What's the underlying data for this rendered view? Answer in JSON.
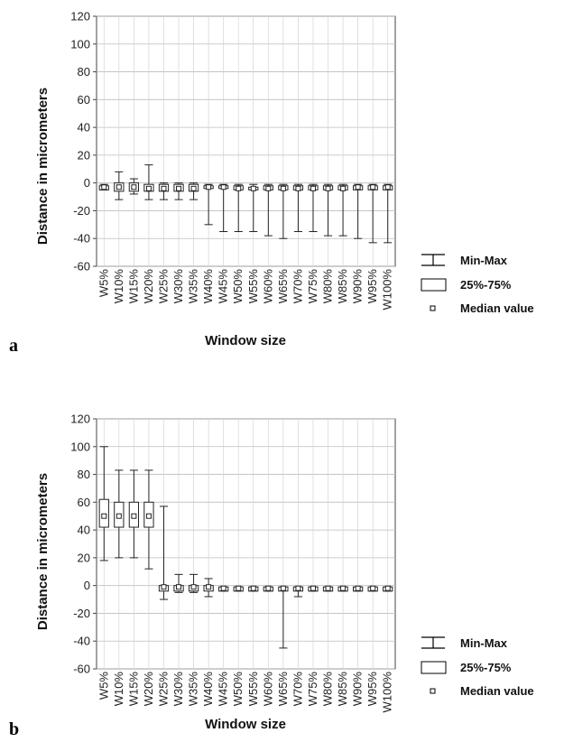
{
  "chart_data": [
    {
      "type": "box",
      "panel_label": "a",
      "xlabel": "Window size",
      "ylabel": "Distance in micrometers",
      "ylim": [
        -60,
        120
      ],
      "yticks": [
        120,
        100,
        80,
        60,
        40,
        20,
        0,
        -20,
        -40,
        -60
      ],
      "grid": true,
      "legend_position": "right",
      "legend": [
        "Min-Max",
        "25%-75%",
        "Median value"
      ],
      "categories": [
        "W5%",
        "W10%",
        "W15%",
        "W20%",
        "W25%",
        "W30%",
        "W35%",
        "W40%",
        "W45%",
        "W50%",
        "W55%",
        "W60%",
        "W65%",
        "W70%",
        "W75%",
        "W80%",
        "W85%",
        "W90%",
        "W95%",
        "W100%"
      ],
      "min": [
        -5,
        -12,
        -8,
        -12,
        -12,
        -12,
        -12,
        -30,
        -35,
        -35,
        -35,
        -38,
        -40,
        -35,
        -35,
        -38,
        -38,
        -40,
        -43,
        -43
      ],
      "q1": [
        -5,
        -6,
        -6,
        -6,
        -6,
        -6,
        -6,
        -4,
        -4,
        -5,
        -5,
        -5,
        -5,
        -5,
        -5,
        -5,
        -5,
        -5,
        -5,
        -5
      ],
      "median": [
        -3,
        -3,
        -3,
        -4,
        -4,
        -4,
        -4,
        -3,
        -3,
        -4,
        -4,
        -4,
        -4,
        -4,
        -4,
        -4,
        -4,
        -3,
        -3,
        -3
      ],
      "q3": [
        -2,
        0,
        0,
        -1,
        -1,
        -1,
        -1,
        -2,
        -2,
        -2,
        -3,
        -2,
        -2,
        -2,
        -2,
        -2,
        -2,
        -2,
        -2,
        -2
      ],
      "max": [
        -1,
        8,
        3,
        13,
        0,
        0,
        0,
        -1,
        -1,
        -1,
        -1,
        -1,
        -1,
        -1,
        -1,
        -1,
        -1,
        -1,
        -1,
        -1
      ]
    },
    {
      "type": "box",
      "panel_label": "b",
      "xlabel": "Window size",
      "ylabel": "Distance in micrometers",
      "ylim": [
        -60,
        120
      ],
      "yticks": [
        120,
        100,
        80,
        60,
        40,
        20,
        0,
        -20,
        -40,
        -60
      ],
      "grid": true,
      "legend_position": "right",
      "legend": [
        "Min-Max",
        "25%-75%",
        "Median value"
      ],
      "categories": [
        "W5%",
        "W10%",
        "W15%",
        "W20%",
        "W25%",
        "W30%",
        "W35%",
        "W40%",
        "W45%",
        "W50%",
        "W55%",
        "W60%",
        "W65%",
        "W70%",
        "W75%",
        "W80%",
        "W85%",
        "W90%",
        "W95%",
        "W100%"
      ],
      "min": [
        18,
        20,
        20,
        12,
        -10,
        -5,
        -5,
        -8,
        -4,
        -4,
        -4,
        -4,
        -45,
        -8,
        -4,
        -4,
        -4,
        -4,
        -4,
        -4
      ],
      "q1": [
        42,
        42,
        42,
        42,
        -4,
        -4,
        -4,
        -4,
        -4,
        -4,
        -4,
        -4,
        -4,
        -4,
        -4,
        -4,
        -4,
        -4,
        -4,
        -4
      ],
      "median": [
        50,
        50,
        50,
        50,
        -1,
        -1,
        -1,
        -1,
        -2,
        -2,
        -2,
        -2,
        -2,
        -2,
        -2,
        -2,
        -2,
        -2,
        -2,
        -2
      ],
      "q3": [
        62,
        60,
        60,
        60,
        0,
        0,
        0,
        0,
        -1,
        -1,
        -1,
        -1,
        -1,
        -1,
        -1,
        -1,
        -1,
        -1,
        -1,
        -1
      ],
      "max": [
        100,
        83,
        83,
        83,
        57,
        8,
        8,
        5,
        -1,
        -1,
        -1,
        -1,
        -1,
        -1,
        -1,
        -1,
        -1,
        -1,
        -1,
        -1
      ]
    }
  ]
}
